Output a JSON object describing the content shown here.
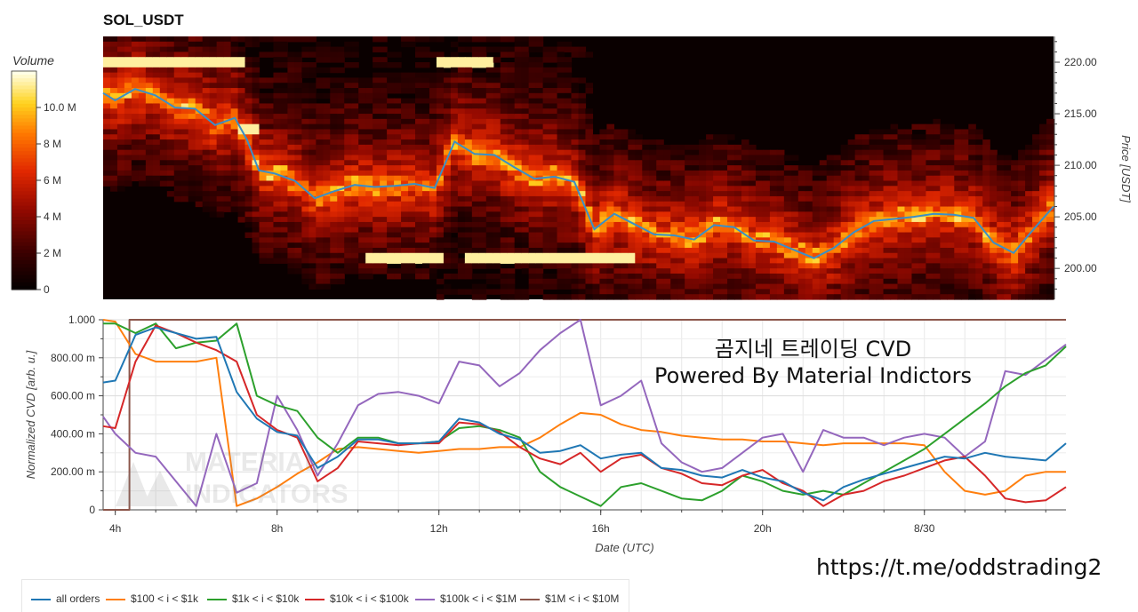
{
  "header": {
    "title": "SOL_USDT"
  },
  "colors": {
    "all_orders": "#1f77b4",
    "usd_100_1k": "#ff7f0e",
    "usd_1k_10k": "#2ca02c",
    "usd_10k_100k": "#d62728",
    "usd_100k_1m": "#9467bd",
    "usd_1m_10m": "#8c564b"
  },
  "overlay": {
    "line1": "곰지네 트레이딩 CVD",
    "line2": "Powered By Material Indictors",
    "url": "https://t.me/oddstrading2",
    "watermark": "MATERIAL INDICATORS"
  },
  "chart_data": [
    {
      "type": "heatmap",
      "title": "SOL_USDT",
      "ylabel": "Price [USDT]",
      "ylim": [
        197,
        222.5
      ],
      "y_ticks": [
        "200.00",
        "205.00",
        "210.00",
        "215.00",
        "220.00"
      ],
      "colorbar": {
        "title": "Volume",
        "range": [
          0,
          12000000
        ],
        "ticks": [
          "0",
          "2 M",
          "4 M",
          "6 M",
          "8 M",
          "10.0 M"
        ]
      },
      "price_series": {
        "name": "price",
        "x": [
          3.7,
          4.0,
          4.5,
          5.0,
          5.5,
          6.0,
          6.5,
          7.0,
          7.3,
          7.6,
          8.0,
          8.5,
          9.0,
          9.5,
          10.0,
          10.5,
          11.0,
          11.5,
          12.0,
          12.5,
          13.0,
          13.5,
          14.0,
          14.5,
          15.0,
          15.5,
          16.0,
          16.5,
          17.0,
          17.5,
          18.0,
          18.5,
          19.0,
          19.5,
          20.0,
          20.5,
          21.0,
          21.5,
          22.0,
          22.5,
          23.0,
          23.5,
          24.0,
          24.5,
          25.0,
          25.5,
          26.0,
          26.5,
          27.0,
          27.5
        ],
        "values": [
          217.0,
          216.3,
          217.4,
          216.8,
          215.6,
          215.5,
          213.9,
          214.6,
          212.5,
          209.5,
          209.2,
          208.5,
          206.8,
          207.5,
          208.1,
          207.9,
          208.0,
          208.2,
          207.8,
          212.3,
          211.1,
          211.0,
          209.8,
          208.7,
          208.9,
          208.4,
          203.8,
          205.3,
          204.3,
          203.3,
          203.2,
          202.8,
          204.2,
          204.0,
          202.7,
          202.6,
          201.8,
          201.0,
          202.0,
          203.5,
          204.6,
          204.8,
          205.0,
          205.3,
          205.2,
          204.9,
          202.5,
          201.5,
          203.8,
          206.0
        ]
      },
      "high_volume_bands": [
        {
          "price": 220.0,
          "x_start": 3.7,
          "x_end": 7.2
        },
        {
          "price": 220.0,
          "x_start": 12.1,
          "x_end": 13.5
        },
        {
          "price": 201.0,
          "x_start": 10.2,
          "x_end": 12.3
        },
        {
          "price": 201.0,
          "x_start": 12.7,
          "x_end": 17.0
        },
        {
          "price": 213.5,
          "x_start": 7.0,
          "x_end": 7.6
        }
      ]
    },
    {
      "type": "line",
      "xlabel": "Date (UTC)",
      "ylabel": "Normalized CVD [arb. u.]",
      "ylim": [
        0,
        1
      ],
      "x_tick_labels": [
        "4h",
        "8h",
        "12h",
        "16h",
        "20h",
        "8/30"
      ],
      "y_tick_labels": [
        "0",
        "200.00 m",
        "400.00 m",
        "600.00 m",
        "800.00 m",
        "1.000"
      ],
      "x": [
        3.7,
        4.0,
        4.5,
        5.0,
        5.5,
        6.0,
        6.5,
        7.0,
        7.5,
        8.0,
        8.5,
        9.0,
        9.5,
        10.0,
        10.5,
        11.0,
        11.5,
        12.0,
        12.5,
        13.0,
        13.5,
        14.0,
        14.5,
        15.0,
        15.5,
        16.0,
        16.5,
        17.0,
        17.5,
        18.0,
        18.5,
        19.0,
        19.5,
        20.0,
        20.5,
        21.0,
        21.5,
        22.0,
        22.5,
        23.0,
        23.5,
        24.0,
        24.5,
        25.0,
        25.5,
        26.0,
        26.5,
        27.0,
        27.5
      ],
      "series": [
        {
          "name": "all orders",
          "values": [
            0.67,
            0.68,
            0.92,
            0.96,
            0.93,
            0.9,
            0.91,
            0.62,
            0.48,
            0.41,
            0.39,
            0.22,
            0.28,
            0.37,
            0.37,
            0.35,
            0.35,
            0.36,
            0.48,
            0.46,
            0.4,
            0.37,
            0.3,
            0.31,
            0.34,
            0.27,
            0.29,
            0.3,
            0.22,
            0.21,
            0.18,
            0.17,
            0.21,
            0.17,
            0.15,
            0.09,
            0.05,
            0.12,
            0.16,
            0.19,
            0.22,
            0.25,
            0.28,
            0.27,
            0.3,
            0.28,
            0.27,
            0.26,
            0.35
          ]
        },
        {
          "name": "$100 < i < $1k",
          "values": [
            1.0,
            0.99,
            0.82,
            0.78,
            0.78,
            0.78,
            0.8,
            0.02,
            0.06,
            0.12,
            0.19,
            0.25,
            0.32,
            0.33,
            0.32,
            0.31,
            0.3,
            0.31,
            0.32,
            0.32,
            0.33,
            0.33,
            0.38,
            0.45,
            0.51,
            0.5,
            0.45,
            0.42,
            0.41,
            0.39,
            0.38,
            0.37,
            0.37,
            0.36,
            0.36,
            0.35,
            0.34,
            0.35,
            0.35,
            0.35,
            0.35,
            0.34,
            0.2,
            0.1,
            0.08,
            0.1,
            0.18,
            0.2,
            0.2
          ]
        },
        {
          "name": "$1k < i < $10k",
          "values": [
            0.98,
            0.98,
            0.93,
            0.98,
            0.85,
            0.88,
            0.89,
            0.98,
            0.6,
            0.55,
            0.52,
            0.38,
            0.3,
            0.38,
            0.38,
            0.35,
            0.35,
            0.36,
            0.43,
            0.44,
            0.42,
            0.38,
            0.2,
            0.12,
            0.07,
            0.02,
            0.12,
            0.14,
            0.1,
            0.06,
            0.05,
            0.1,
            0.18,
            0.15,
            0.1,
            0.08,
            0.1,
            0.08,
            0.14,
            0.2,
            0.26,
            0.32,
            0.4,
            0.48,
            0.56,
            0.65,
            0.72,
            0.76,
            0.86
          ]
        },
        {
          "name": "$10k < i < $100k",
          "values": [
            0.44,
            0.43,
            0.78,
            0.97,
            0.93,
            0.88,
            0.84,
            0.78,
            0.5,
            0.42,
            0.38,
            0.15,
            0.22,
            0.36,
            0.35,
            0.34,
            0.35,
            0.35,
            0.46,
            0.45,
            0.41,
            0.33,
            0.27,
            0.24,
            0.3,
            0.2,
            0.27,
            0.29,
            0.22,
            0.19,
            0.14,
            0.13,
            0.18,
            0.21,
            0.14,
            0.1,
            0.02,
            0.08,
            0.1,
            0.15,
            0.18,
            0.22,
            0.26,
            0.28,
            0.18,
            0.06,
            0.04,
            0.05,
            0.12
          ]
        },
        {
          "name": "$100k < i < $1M",
          "values": [
            0.49,
            0.4,
            0.3,
            0.28,
            0.15,
            0.02,
            0.4,
            0.09,
            0.14,
            0.6,
            0.42,
            0.18,
            0.35,
            0.55,
            0.61,
            0.62,
            0.6,
            0.56,
            0.78,
            0.76,
            0.65,
            0.72,
            0.84,
            0.93,
            1.0,
            0.55,
            0.6,
            0.68,
            0.35,
            0.25,
            0.2,
            0.22,
            0.3,
            0.38,
            0.4,
            0.2,
            0.42,
            0.38,
            0.38,
            0.34,
            0.38,
            0.4,
            0.38,
            0.28,
            0.36,
            0.73,
            0.71,
            0.79,
            0.87
          ]
        },
        {
          "name": "$1M < i < $10M",
          "values": [
            0,
            0,
            0,
            1,
            1,
            1,
            1,
            1,
            1,
            1,
            1,
            1,
            1,
            1,
            1,
            1,
            1,
            1,
            1,
            1,
            1,
            1,
            1,
            1,
            1,
            1,
            1,
            1,
            1,
            1,
            1,
            1,
            1,
            1,
            1,
            1,
            1,
            1,
            1,
            1,
            1,
            1,
            1,
            1,
            1,
            1,
            1,
            1,
            1
          ]
        }
      ],
      "legend_position": "bottom"
    }
  ]
}
